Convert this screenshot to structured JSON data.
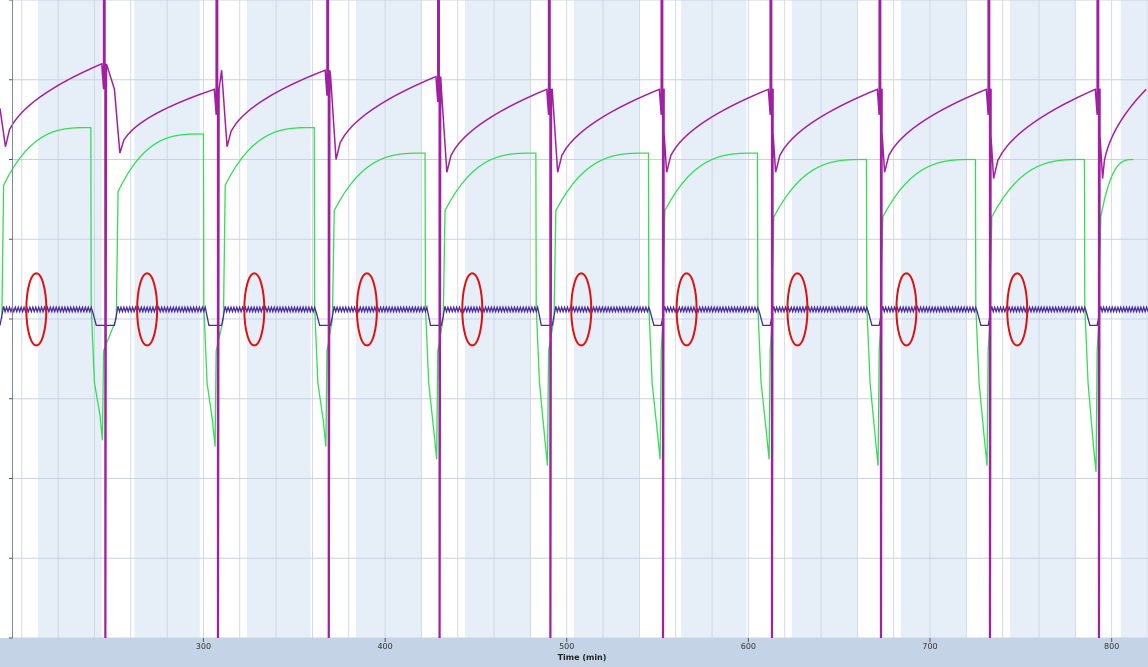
{
  "chart_data": {
    "type": "line",
    "title": "",
    "xlabel": "Time   (min)",
    "ylabel": "",
    "xlim": [
      188,
      820
    ],
    "ylim": [
      0,
      100
    ],
    "grid": true,
    "legend": "none",
    "x_ticks": [
      300,
      400,
      500,
      600,
      700,
      800
    ],
    "y_ticks": [
      0,
      12.5,
      25,
      37.5,
      50,
      62.5,
      75,
      87.5,
      100
    ],
    "shaded_intervals": [
      [
        209,
        244
      ],
      [
        262,
        298
      ],
      [
        324,
        359
      ],
      [
        384,
        420
      ],
      [
        444,
        480
      ],
      [
        504,
        540
      ],
      [
        563,
        599
      ],
      [
        624,
        660
      ],
      [
        684,
        720
      ],
      [
        744,
        780
      ],
      [
        805,
        820
      ]
    ],
    "cycles": [
      {
        "start": 188,
        "end": 245
      },
      {
        "start": 251,
        "end": 307
      },
      {
        "start": 310,
        "end": 368
      },
      {
        "start": 370,
        "end": 429
      },
      {
        "start": 431,
        "end": 490
      },
      {
        "start": 492,
        "end": 552
      },
      {
        "start": 552,
        "end": 612
      },
      {
        "start": 612,
        "end": 672
      },
      {
        "start": 672,
        "end": 732
      },
      {
        "start": 732,
        "end": 792
      },
      {
        "start": 792,
        "end": 820
      }
    ],
    "series": [
      {
        "color": "#a020a0",
        "peak_values": [
          90,
          86,
          89,
          88,
          86,
          86,
          86,
          86,
          86,
          86
        ],
        "trough_values": [
          77,
          76,
          77,
          75,
          73,
          73,
          73,
          73,
          73,
          72
        ]
      },
      {
        "color": "#33dd55",
        "plateau_values": [
          80,
          79,
          80,
          76,
          76,
          76,
          76,
          75,
          75,
          75
        ],
        "min_values": [
          31,
          30,
          30,
          28,
          27,
          28,
          28,
          27,
          27,
          26
        ]
      },
      {
        "color": "#4a2a9a",
        "baseline_value": 51.5,
        "dip_value": 49
      }
    ],
    "annotations": [
      {
        "shape": "ellipse",
        "color": "#e01010",
        "x": 208,
        "y": 51.5
      },
      {
        "shape": "ellipse",
        "color": "#e01010",
        "x": 269,
        "y": 51.5
      },
      {
        "shape": "ellipse",
        "color": "#e01010",
        "x": 328,
        "y": 51.5
      },
      {
        "shape": "ellipse",
        "color": "#e01010",
        "x": 390,
        "y": 51.5
      },
      {
        "shape": "ellipse",
        "color": "#e01010",
        "x": 448,
        "y": 51.5
      },
      {
        "shape": "ellipse",
        "color": "#e01010",
        "x": 508,
        "y": 51.5
      },
      {
        "shape": "ellipse",
        "color": "#e01010",
        "x": 566,
        "y": 51.5
      },
      {
        "shape": "ellipse",
        "color": "#e01010",
        "x": 627,
        "y": 51.5
      },
      {
        "shape": "ellipse",
        "color": "#e01010",
        "x": 687,
        "y": 51.5
      },
      {
        "shape": "ellipse",
        "color": "#e01010",
        "x": 748,
        "y": 51.5
      }
    ],
    "colors": {
      "plot_background": "#ffffff",
      "shade": "#e6eef8",
      "grid": "#c8d2e0",
      "axis_bar": "#c5d3e6"
    }
  }
}
